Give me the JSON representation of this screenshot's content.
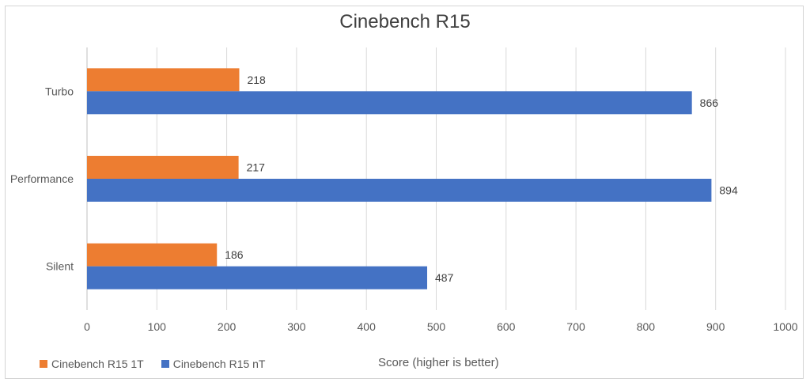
{
  "chart_data": {
    "type": "bar",
    "orientation": "horizontal",
    "title": "Cinebench R15",
    "xlabel": "Score (higher is better)",
    "ylabel": "",
    "categories": [
      "Turbo",
      "Performance",
      "Silent"
    ],
    "series": [
      {
        "name": "Cinebench R15 1T",
        "color": "#ED7D31",
        "values": [
          218,
          217,
          186
        ]
      },
      {
        "name": "Cinebench R15 nT",
        "color": "#4472C4",
        "values": [
          866,
          894,
          487
        ]
      }
    ],
    "xlim": [
      0,
      1000
    ],
    "xticks": [
      "0",
      "100",
      "200",
      "300",
      "400",
      "500",
      "600",
      "700",
      "800",
      "900",
      "1000"
    ],
    "grid": true,
    "legend_position": "bottom-left"
  }
}
